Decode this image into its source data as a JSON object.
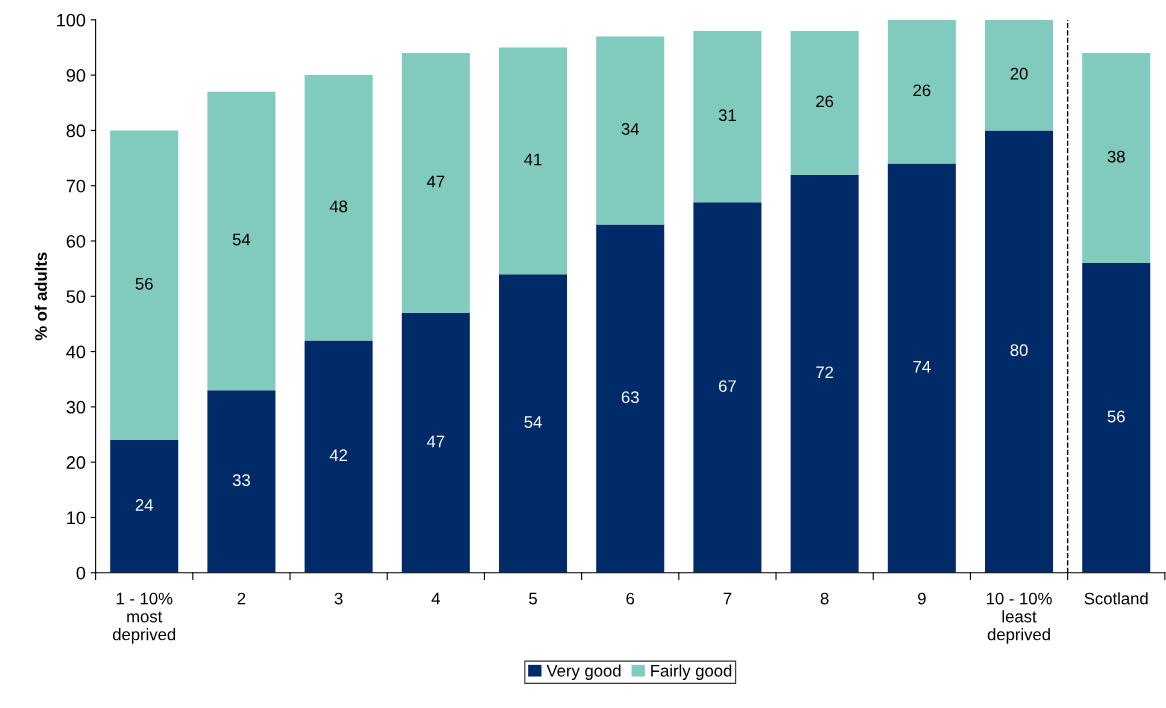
{
  "chart_data": {
    "type": "bar",
    "stacked": true,
    "ylabel": "% of adults",
    "categories": [
      "1 - 10%\nmost\ndeprived",
      "2",
      "3",
      "4",
      "5",
      "6",
      "7",
      "8",
      "9",
      "10 - 10%\nleast\ndeprived",
      "Scotland"
    ],
    "series": [
      {
        "name": "Very good",
        "color": "#002b68",
        "values": [
          24,
          33,
          42,
          47,
          54,
          63,
          67,
          72,
          74,
          80,
          56
        ]
      },
      {
        "name": "Fairly good",
        "color": "#80cbbd",
        "values": [
          56,
          54,
          48,
          47,
          41,
          34,
          31,
          26,
          26,
          20,
          38
        ]
      }
    ],
    "ylim": [
      0,
      100
    ],
    "yticks": [
      0,
      10,
      20,
      30,
      40,
      50,
      60,
      70,
      80,
      90,
      100
    ],
    "data_labels": true,
    "grid": false,
    "legend": "bottom"
  }
}
